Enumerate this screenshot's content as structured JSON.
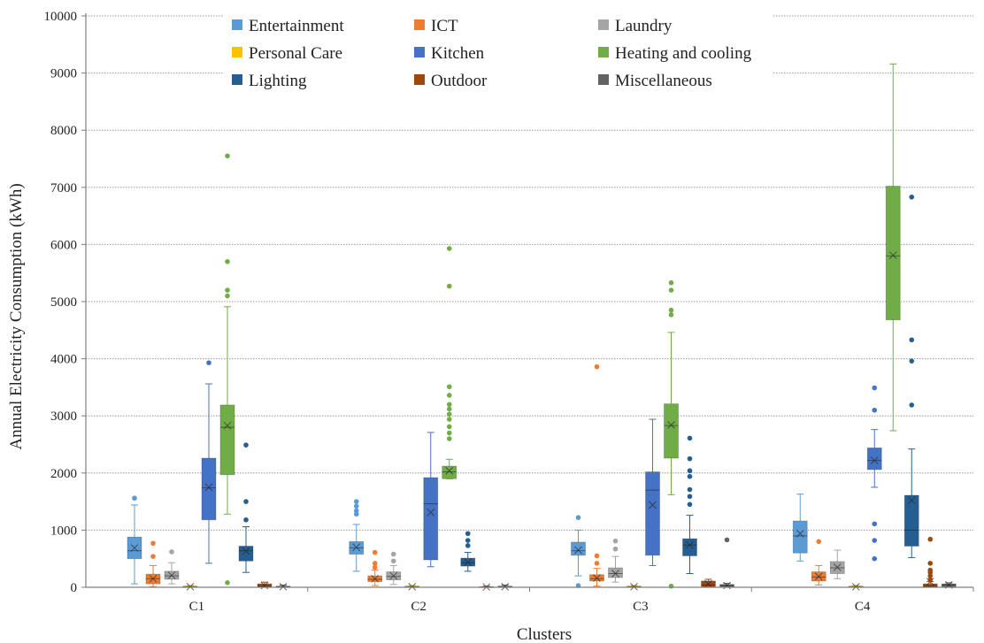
{
  "chart_data": {
    "type": "boxplot",
    "xlabel": "Clusters",
    "ylabel": "Annual Electricity Consumption (kWh)",
    "ylim": [
      0,
      10000
    ],
    "yticks": [
      0,
      1000,
      2000,
      3000,
      4000,
      5000,
      6000,
      7000,
      8000,
      9000,
      10000
    ],
    "grid": true,
    "legend_position": "top",
    "categories": [
      "C1",
      "C2",
      "C3",
      "C4"
    ],
    "series": [
      {
        "name": "Entertainment",
        "color": "#5b9bd5",
        "boxes": [
          {
            "min": 60,
            "q1": 500,
            "median": 640,
            "q3": 880,
            "max": 1440,
            "mean": 690,
            "outliers": [
              1560
            ]
          },
          {
            "min": 280,
            "q1": 580,
            "median": 690,
            "q3": 800,
            "max": 1100,
            "mean": 700,
            "outliers": [
              1280,
              1340,
              1420,
              1500
            ]
          },
          {
            "min": 200,
            "q1": 560,
            "median": 640,
            "q3": 790,
            "max": 1000,
            "mean": 650,
            "outliers": [
              30,
              1220
            ]
          },
          {
            "min": 460,
            "q1": 600,
            "median": 900,
            "q3": 1160,
            "max": 1630,
            "mean": 940,
            "outliers": []
          }
        ]
      },
      {
        "name": "ICT",
        "color": "#ed7d31",
        "boxes": [
          {
            "min": 10,
            "q1": 60,
            "median": 150,
            "q3": 230,
            "max": 380,
            "mean": 150,
            "outliers": [
              540,
              770
            ]
          },
          {
            "min": 30,
            "q1": 100,
            "median": 140,
            "q3": 200,
            "max": 300,
            "mean": 150,
            "outliers": [
              350,
              420,
              610
            ]
          },
          {
            "min": 20,
            "q1": 110,
            "median": 150,
            "q3": 220,
            "max": 330,
            "mean": 160,
            "outliers": [
              420,
              550,
              3860
            ]
          },
          {
            "min": 40,
            "q1": 110,
            "median": 180,
            "q3": 270,
            "max": 380,
            "mean": 190,
            "outliers": [
              800
            ]
          }
        ]
      },
      {
        "name": "Laundry",
        "color": "#a5a5a5",
        "boxes": [
          {
            "min": 60,
            "q1": 140,
            "median": 200,
            "q3": 280,
            "max": 430,
            "mean": 210,
            "outliers": [
              620
            ]
          },
          {
            "min": 50,
            "q1": 130,
            "median": 190,
            "q3": 270,
            "max": 380,
            "mean": 200,
            "outliers": [
              460,
              580
            ]
          },
          {
            "min": 90,
            "q1": 170,
            "median": 240,
            "q3": 340,
            "max": 540,
            "mean": 240,
            "outliers": [
              670,
              810
            ]
          },
          {
            "min": 150,
            "q1": 240,
            "median": 340,
            "q3": 450,
            "max": 650,
            "mean": 350,
            "outliers": []
          }
        ]
      },
      {
        "name": "Personal Care",
        "color": "#ffc000",
        "boxes": [
          {
            "min": 0,
            "q1": 0,
            "median": 10,
            "q3": 20,
            "max": 30,
            "mean": 10,
            "outliers": []
          },
          {
            "min": 0,
            "q1": 0,
            "median": 10,
            "q3": 20,
            "max": 30,
            "mean": 10,
            "outliers": []
          },
          {
            "min": 0,
            "q1": 0,
            "median": 10,
            "q3": 20,
            "max": 30,
            "mean": 10,
            "outliers": []
          },
          {
            "min": 0,
            "q1": 0,
            "median": 10,
            "q3": 20,
            "max": 30,
            "mean": 10,
            "outliers": []
          }
        ]
      },
      {
        "name": "Kitchen",
        "color": "#4472c4",
        "boxes": [
          {
            "min": 420,
            "q1": 1180,
            "median": 1740,
            "q3": 2260,
            "max": 3560,
            "mean": 1750,
            "outliers": [
              3930
            ]
          },
          {
            "min": 360,
            "q1": 480,
            "median": 1460,
            "q3": 1920,
            "max": 2710,
            "mean": 1310,
            "outliers": []
          },
          {
            "min": 380,
            "q1": 560,
            "median": 1700,
            "q3": 2020,
            "max": 2940,
            "mean": 1440,
            "outliers": []
          },
          {
            "min": 1750,
            "q1": 2060,
            "median": 2220,
            "q3": 2440,
            "max": 2760,
            "mean": 2220,
            "outliers": [
              500,
              820,
              1110,
              3100,
              3490
            ]
          }
        ]
      },
      {
        "name": "Heating and cooling",
        "color": "#70ad47",
        "boxes": [
          {
            "min": 1280,
            "q1": 1970,
            "median": 2800,
            "q3": 3190,
            "max": 4910,
            "mean": 2830,
            "outliers": [
              80,
              5100,
              5200,
              5700,
              7550
            ]
          },
          {
            "min": 1900,
            "q1": 1900,
            "median": 2020,
            "q3": 2120,
            "max": 2240,
            "mean": 2040,
            "outliers": [
              2600,
              2700,
              2810,
              2940,
              3030,
              3120,
              3200,
              3360,
              3510,
              5270,
              5930
            ]
          },
          {
            "min": 1620,
            "q1": 2260,
            "median": 2830,
            "q3": 3210,
            "max": 4460,
            "mean": 2840,
            "outliers": [
              20,
              4770,
              4850,
              5200,
              5330
            ]
          },
          {
            "min": 2740,
            "q1": 4680,
            "median": 5800,
            "q3": 7020,
            "max": 9160,
            "mean": 5810,
            "outliers": []
          }
        ]
      },
      {
        "name": "Lighting",
        "color": "#255e91",
        "boxes": [
          {
            "min": 260,
            "q1": 460,
            "median": 640,
            "q3": 720,
            "max": 1060,
            "mean": 630,
            "outliers": [
              1180,
              1500,
              2490
            ]
          },
          {
            "min": 280,
            "q1": 370,
            "median": 430,
            "q3": 510,
            "max": 610,
            "mean": 440,
            "outliers": [
              730,
              820,
              940
            ]
          },
          {
            "min": 240,
            "q1": 550,
            "median": 740,
            "q3": 850,
            "max": 1260,
            "mean": 740,
            "outliers": [
              1450,
              1590,
              1710,
              1940,
              2040,
              2250,
              2610
            ]
          },
          {
            "min": 520,
            "q1": 720,
            "median": 1000,
            "q3": 1610,
            "max": 2420,
            "mean": 1520,
            "outliers": [
              3190,
              3960,
              4330,
              6830
            ]
          }
        ]
      },
      {
        "name": "Outdoor",
        "color": "#9e480e",
        "boxes": [
          {
            "min": 0,
            "q1": 0,
            "median": 20,
            "q3": 60,
            "max": 90,
            "mean": 30,
            "outliers": []
          },
          {
            "min": 0,
            "q1": 0,
            "median": 5,
            "q3": 10,
            "max": 20,
            "mean": 5,
            "outliers": []
          },
          {
            "min": 0,
            "q1": 10,
            "median": 40,
            "q3": 110,
            "max": 140,
            "mean": 60,
            "outliers": []
          },
          {
            "min": 0,
            "q1": 0,
            "median": 20,
            "q3": 60,
            "max": 100,
            "mean": 100,
            "outliers": [
              130,
              200,
              260,
              300,
              420,
              840
            ]
          }
        ]
      },
      {
        "name": "Miscellaneous",
        "color": "#636363",
        "boxes": [
          {
            "min": 0,
            "q1": 0,
            "median": 10,
            "q3": 20,
            "max": 40,
            "mean": 10,
            "outliers": []
          },
          {
            "min": 0,
            "q1": 0,
            "median": 10,
            "q3": 20,
            "max": 40,
            "mean": 10,
            "outliers": []
          },
          {
            "min": 0,
            "q1": 10,
            "median": 30,
            "q3": 50,
            "max": 70,
            "mean": 30,
            "outliers": [
              830
            ]
          },
          {
            "min": 0,
            "q1": 10,
            "median": 40,
            "q3": 60,
            "max": 80,
            "mean": 40,
            "outliers": []
          }
        ]
      }
    ]
  }
}
